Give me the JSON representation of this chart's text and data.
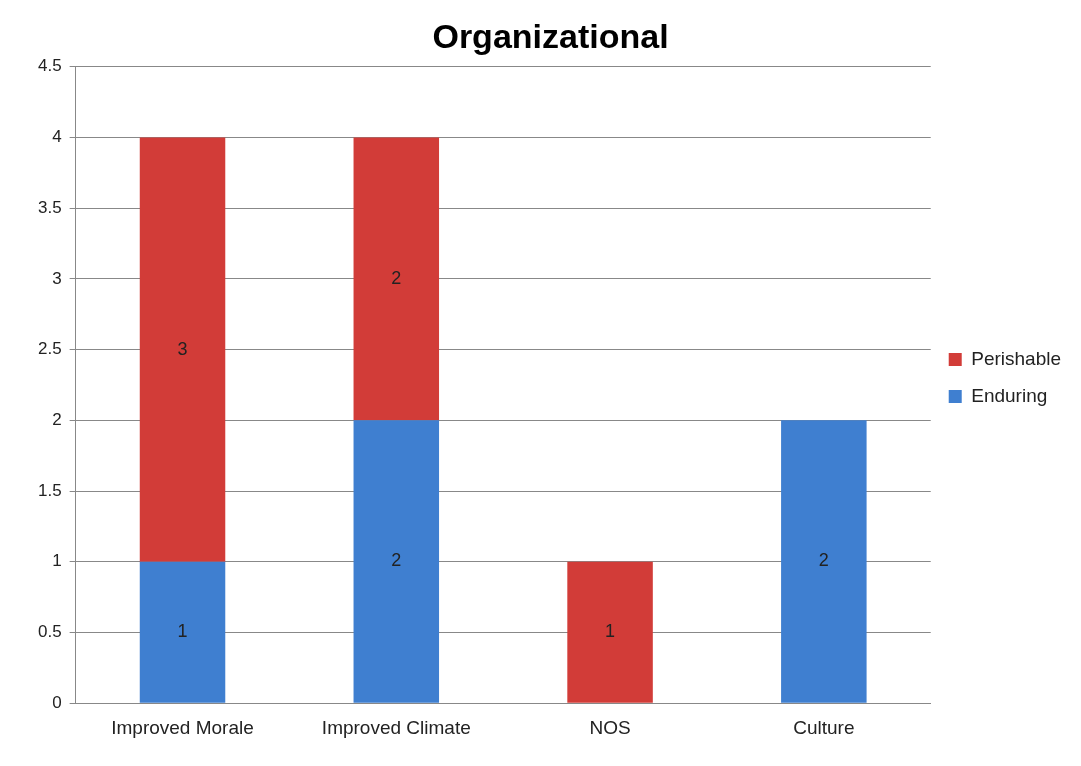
{
  "chart_data": {
    "type": "bar",
    "title": "Organizational",
    "categories": [
      "Improved Morale",
      "Improved Climate",
      "NOS",
      "Culture"
    ],
    "series": [
      {
        "name": "Enduring",
        "color": "#3f7fd0",
        "values": [
          1,
          2,
          null,
          2
        ]
      },
      {
        "name": "Perishable",
        "color": "#d23c38",
        "values": [
          3,
          2,
          1,
          null
        ]
      }
    ],
    "stacked": true,
    "ylim": [
      0,
      4.5
    ],
    "yticks": [
      0,
      0.5,
      1,
      1.5,
      2,
      2.5,
      3,
      3.5,
      4,
      4.5
    ],
    "grid": "y",
    "legend": "right",
    "data_labels": true
  }
}
